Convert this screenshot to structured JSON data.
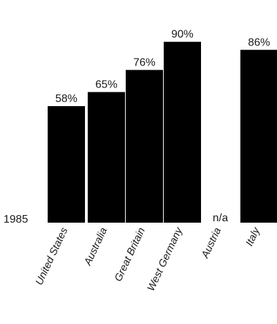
{
  "chart_data": {
    "type": "bar",
    "row_label": "1985",
    "categories": [
      "United States",
      "Australia",
      "Great Britain",
      "West Germany",
      "Austria",
      "Italy"
    ],
    "values": [
      58,
      65,
      76,
      90,
      null,
      86
    ],
    "value_labels": [
      "58%",
      "65%",
      "76%",
      "90%",
      "n/a",
      "86%"
    ],
    "missing_label": "n/a",
    "ylim": [
      0,
      100
    ],
    "title": "",
    "xlabel": "",
    "ylabel": "",
    "grid": false,
    "bar_color": "#000000"
  }
}
